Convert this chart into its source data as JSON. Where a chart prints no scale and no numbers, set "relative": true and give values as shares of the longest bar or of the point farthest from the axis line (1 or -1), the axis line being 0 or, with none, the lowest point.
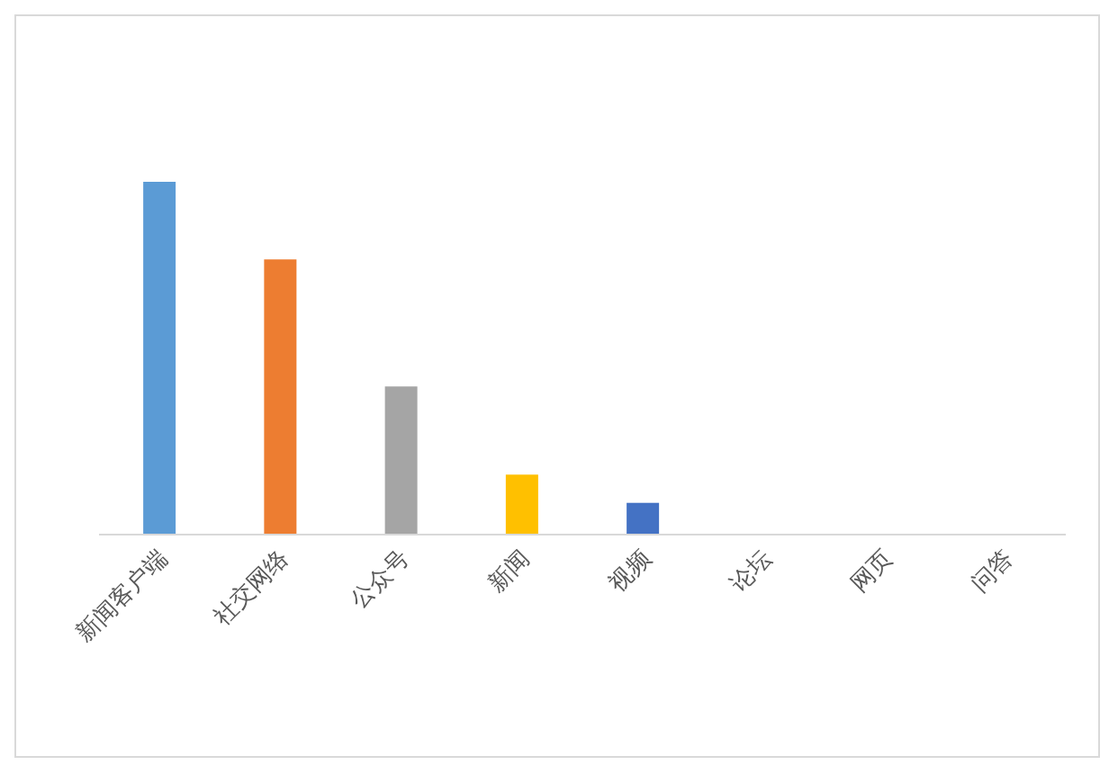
{
  "chart_data": {
    "type": "bar",
    "relative": true,
    "categories": [
      "新闻客户端",
      "社交网络",
      "公众号",
      "新闻",
      "视频",
      "论坛",
      "网页",
      "问答"
    ],
    "values": [
      1,
      0.78,
      0.42,
      0.17,
      0.09,
      0,
      0,
      0
    ],
    "colors": [
      "#5b9bd5",
      "#ed7d31",
      "#a5a5a5",
      "#ffc000",
      "#4472c4",
      "#70ad47",
      "#255e91",
      "#9e480e"
    ]
  }
}
